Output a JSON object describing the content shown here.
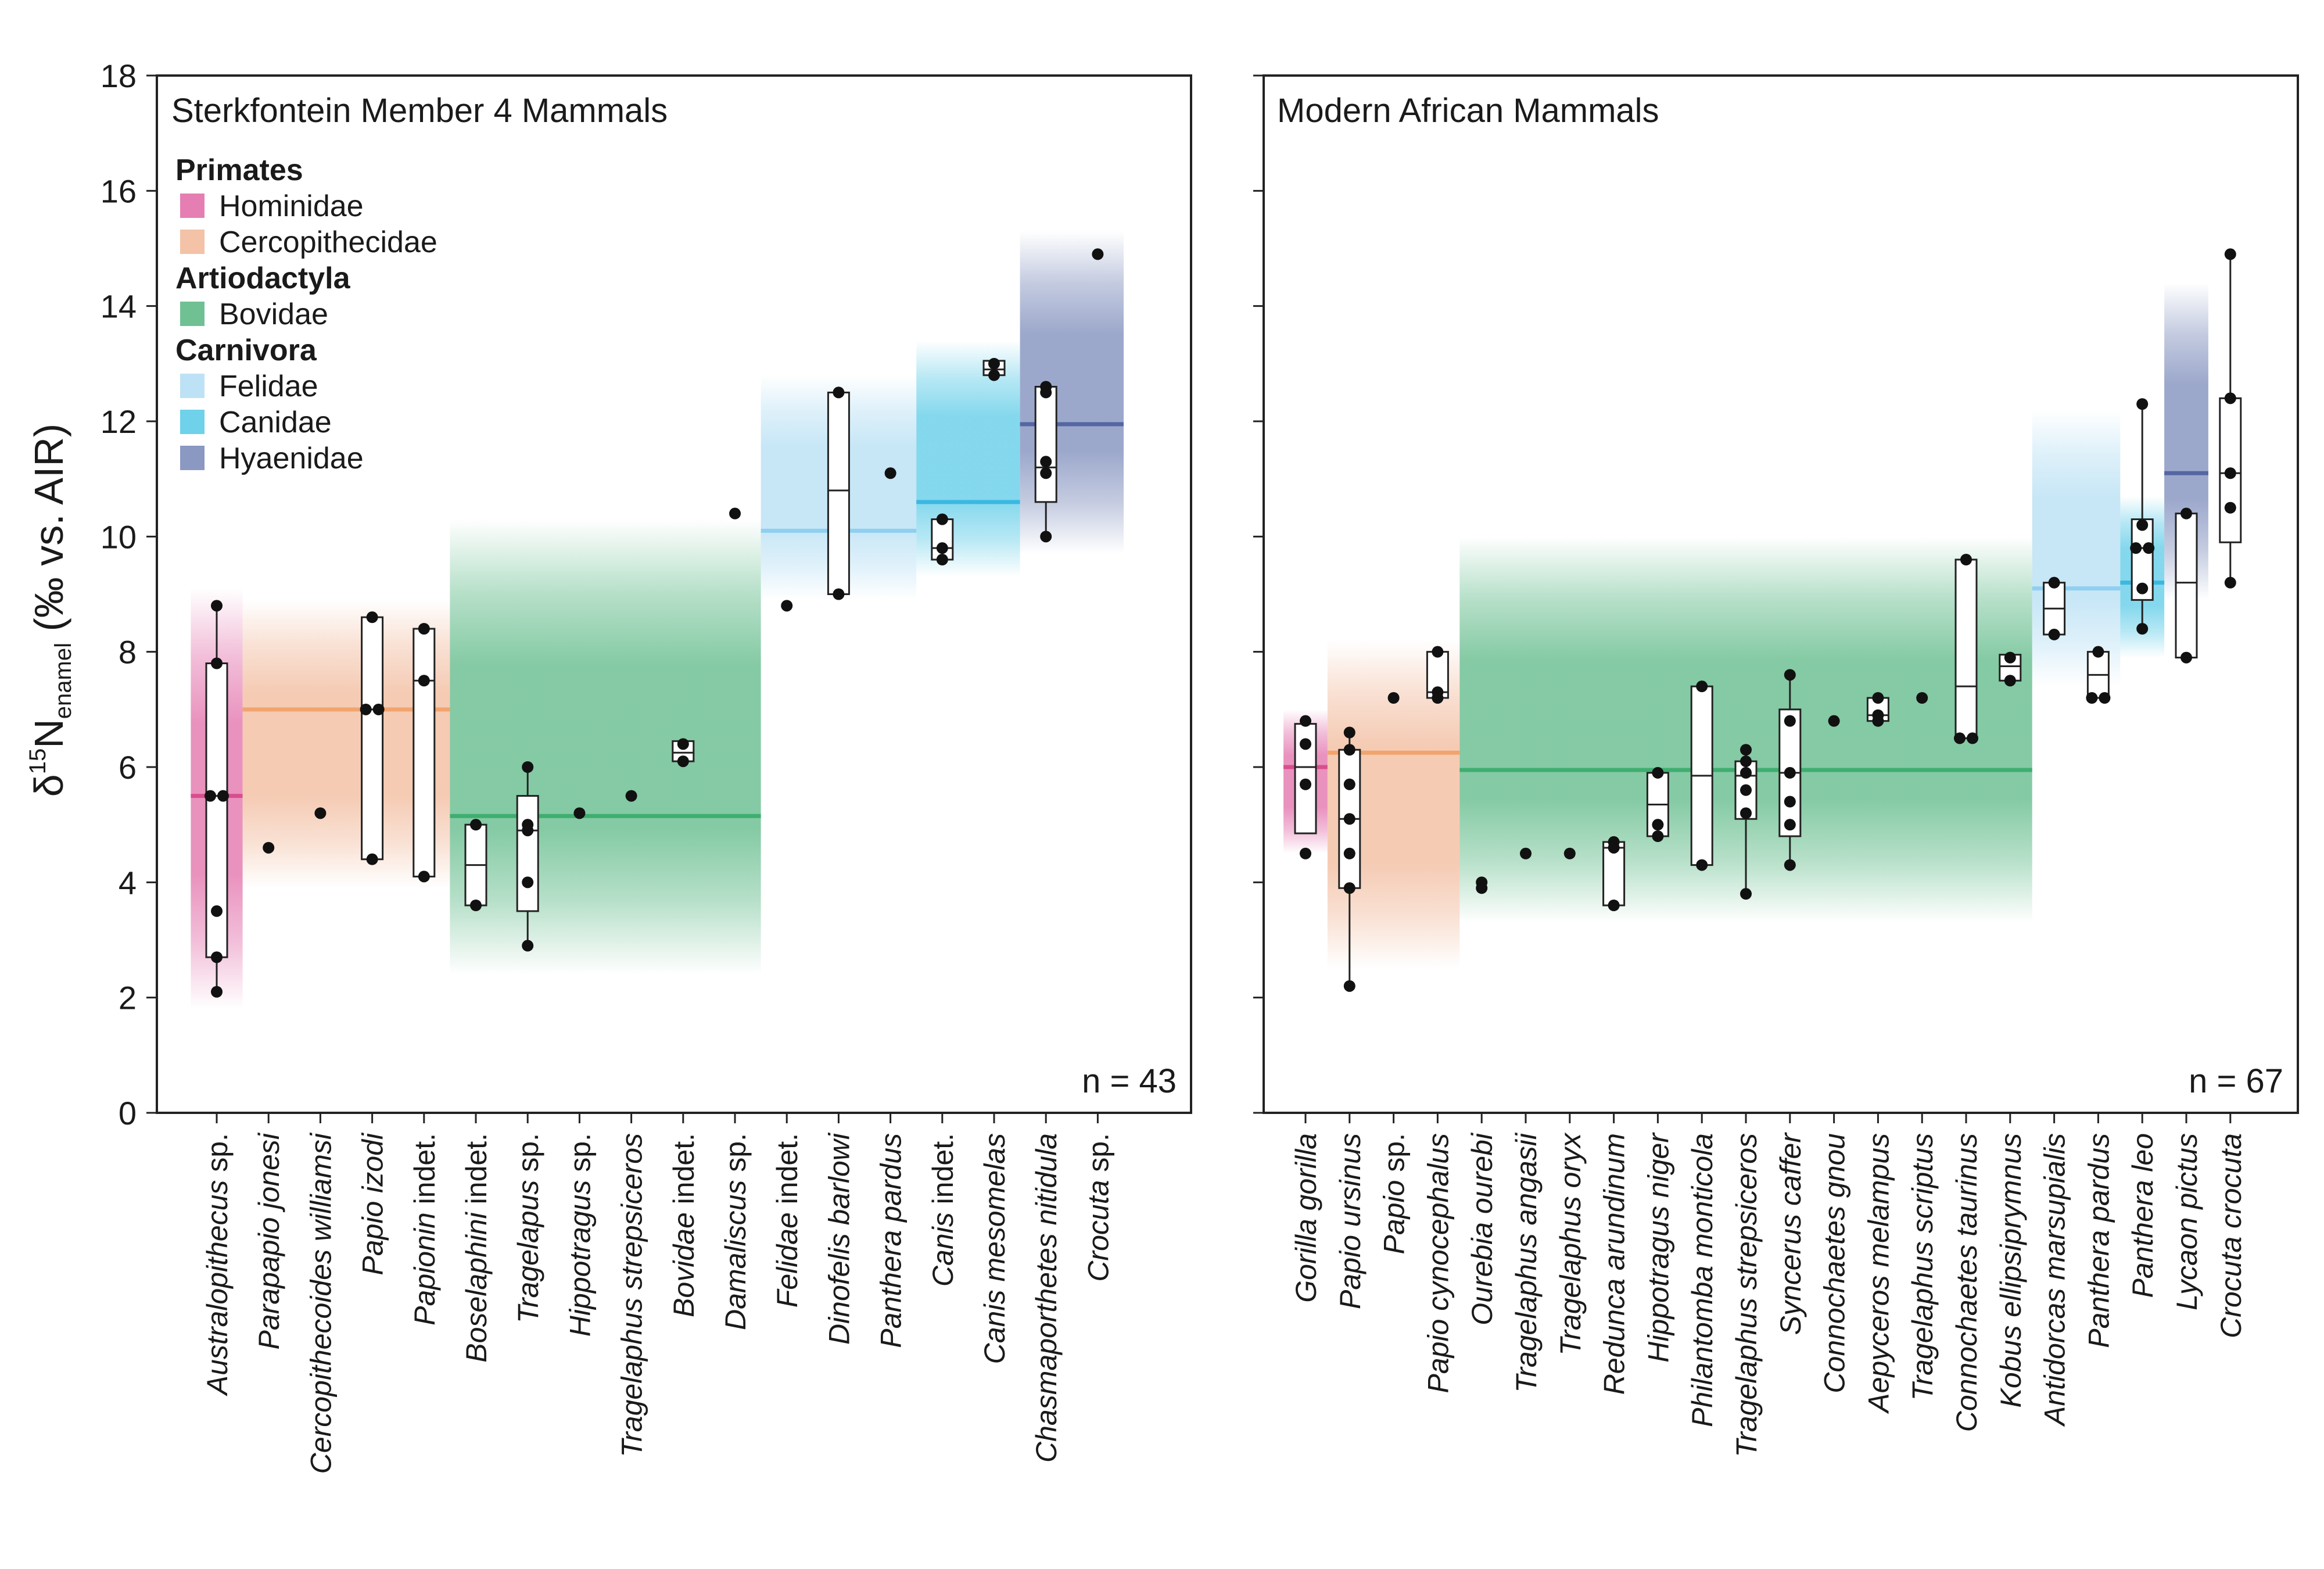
{
  "y_axis": {
    "label_main": "δ",
    "label_sup": "15",
    "label_n": "N",
    "label_sub": "enamel",
    "label_rest": " (‰ vs. AIR)",
    "ylim": [
      0,
      18
    ],
    "ticks": [
      "0",
      "2",
      "4",
      "6",
      "8",
      "10",
      "12",
      "14",
      "16",
      "18"
    ]
  },
  "legend": {
    "groups": [
      {
        "order": "Primates",
        "families": [
          {
            "name": "Hominidae",
            "color": "#e57fb3"
          },
          {
            "name": "Cercopithecidae",
            "color": "#f3c2a7"
          }
        ]
      },
      {
        "order": "Artiodactyla",
        "families": [
          {
            "name": "Bovidae",
            "color": "#6fc194"
          }
        ]
      },
      {
        "order": "Carnivora",
        "families": [
          {
            "name": "Felidae",
            "color": "#bde2f5"
          },
          {
            "name": "Canidae",
            "color": "#6fd1ea"
          },
          {
            "name": "Hyaenidae",
            "color": "#8a98c2"
          }
        ]
      }
    ]
  },
  "chart_data": [
    {
      "type": "box",
      "title": "Sterkfontein Member 4 Mammals",
      "n_label": "n = 43",
      "ylim": [
        0,
        18
      ],
      "family_bands": [
        {
          "family": "Hominidae",
          "color": "#e57fb3",
          "mean_color": "#d94d8f",
          "from": 0,
          "to": 0,
          "mean": 5.5,
          "low": 1.8,
          "high": 9.1
        },
        {
          "family": "Cercopithecidae",
          "color": "#f3c2a7",
          "mean_color": "#f2a46d",
          "from": 1,
          "to": 4,
          "mean": 7.0,
          "low": 3.9,
          "high": 8.9
        },
        {
          "family": "Bovidae",
          "color": "#6fc194",
          "mean_color": "#3fae70",
          "from": 5,
          "to": 10,
          "mean": 5.15,
          "low": 2.4,
          "high": 10.3
        },
        {
          "family": "Felidae",
          "color": "#bde2f5",
          "mean_color": "#8fd0f0",
          "from": 11,
          "to": 13,
          "mean": 10.1,
          "low": 8.9,
          "high": 12.8
        },
        {
          "family": "Canidae",
          "color": "#6fd1ea",
          "mean_color": "#3bb8e0",
          "from": 14,
          "to": 15,
          "mean": 10.6,
          "low": 9.3,
          "high": 13.4
        },
        {
          "family": "Hyaenidae",
          "color": "#8a98c2",
          "mean_color": "#5466a3",
          "from": 16,
          "to": 17,
          "mean": 11.95,
          "low": 9.7,
          "high": 15.3
        }
      ],
      "taxa": [
        {
          "name": "Australopithecus",
          "suffix": " sp.",
          "points": [
            8.8,
            7.8,
            5.5,
            5.5,
            3.5,
            2.7,
            2.1
          ],
          "box": [
            2.7,
            5.5,
            7.8
          ],
          "whisker": [
            2.1,
            8.8
          ]
        },
        {
          "name": "Parapapio jonesi",
          "suffix": "",
          "points": [
            4.6
          ]
        },
        {
          "name": "Cercopithecoides williamsi",
          "suffix": "",
          "points": [
            5.2
          ]
        },
        {
          "name": "Papio izodi",
          "suffix": "",
          "points": [
            8.6,
            7.0,
            7.0,
            4.4
          ],
          "box": [
            4.4,
            7.0,
            8.6
          ]
        },
        {
          "name": "Papionin",
          "suffix": " indet.",
          "points": [
            8.4,
            7.5,
            4.1
          ],
          "box": [
            4.1,
            7.5,
            8.4
          ]
        },
        {
          "name": "Boselaphini",
          "suffix": " indet.",
          "points": [
            5.0,
            3.6
          ],
          "box": [
            3.6,
            4.3,
            5.0
          ]
        },
        {
          "name": "Tragelapus",
          "suffix": " sp.",
          "points": [
            6.0,
            5.0,
            4.9,
            4.0,
            2.9
          ],
          "box": [
            3.5,
            4.9,
            5.5
          ],
          "whisker": [
            2.9,
            6.0
          ]
        },
        {
          "name": "Hippotragus",
          "suffix": " sp.",
          "points": [
            5.2
          ]
        },
        {
          "name": "Tragelaphus strepsiceros",
          "suffix": "",
          "points": [
            5.5
          ]
        },
        {
          "name": "Bovidae",
          "suffix": " indet.",
          "points": [
            6.4,
            6.1
          ],
          "box": [
            6.1,
            6.25,
            6.45
          ]
        },
        {
          "name": "Damaliscus",
          "suffix": " sp.",
          "points": [
            10.4
          ]
        },
        {
          "name": "Felidae",
          "suffix": " indet.",
          "points": [
            8.8
          ]
        },
        {
          "name": "Dinofelis barlowi",
          "suffix": "",
          "points": [
            12.5,
            9.0
          ],
          "box": [
            9.0,
            10.8,
            12.5
          ]
        },
        {
          "name": "Panthera pardus",
          "suffix": "",
          "points": [
            11.1
          ]
        },
        {
          "name": "Canis",
          "suffix": " indet.",
          "points": [
            10.3,
            9.8,
            9.6
          ],
          "box": [
            9.6,
            9.8,
            10.3
          ]
        },
        {
          "name": "Canis mesomelas",
          "suffix": "",
          "points": [
            13.0,
            12.8
          ],
          "box": [
            12.8,
            12.9,
            13.05
          ]
        },
        {
          "name": "Chasmaporthetes nitidula",
          "suffix": "",
          "points": [
            12.6,
            12.5,
            11.3,
            11.1,
            10.0
          ],
          "box": [
            10.6,
            11.2,
            12.6
          ],
          "whisker": [
            10.0,
            12.6
          ]
        },
        {
          "name": "Crocuta",
          "suffix": " sp.",
          "points": [
            14.9
          ]
        }
      ]
    },
    {
      "type": "box",
      "title": "Modern African Mammals",
      "n_label": "n = 67",
      "ylim": [
        0,
        18
      ],
      "family_bands": [
        {
          "family": "Hominidae",
          "color": "#e57fb3",
          "mean_color": "#d94d8f",
          "from": 0,
          "to": 0,
          "mean": 6.0,
          "low": 4.5,
          "high": 7.0
        },
        {
          "family": "Cercopithecidae",
          "color": "#f3c2a7",
          "mean_color": "#f2a46d",
          "from": 1,
          "to": 3,
          "mean": 6.25,
          "low": 2.5,
          "high": 8.2
        },
        {
          "family": "Bovidae",
          "color": "#6fc194",
          "mean_color": "#3fae70",
          "from": 4,
          "to": 16,
          "mean": 5.95,
          "low": 3.3,
          "high": 10.0
        },
        {
          "family": "Felidae",
          "color": "#bde2f5",
          "mean_color": "#8fd0f0",
          "from": 17,
          "to": 18,
          "mean": 9.1,
          "low": 7.4,
          "high": 12.2
        },
        {
          "family": "Canidae",
          "color": "#6fd1ea",
          "mean_color": "#3bb8e0",
          "from": 19,
          "to": 19,
          "mean": 9.2,
          "low": 7.9,
          "high": 10.7
        },
        {
          "family": "Hyaenidae",
          "color": "#8a98c2",
          "mean_color": "#5466a3",
          "from": 20,
          "to": 20,
          "mean": 11.1,
          "low": 8.9,
          "high": 14.4
        }
      ],
      "taxa": [
        {
          "name": "Gorilla gorilla",
          "suffix": "",
          "points": [
            6.8,
            6.4,
            5.7,
            4.5
          ],
          "box": [
            4.85,
            6.0,
            6.75
          ]
        },
        {
          "name": "Papio ursinus",
          "suffix": "",
          "points": [
            6.6,
            6.3,
            5.7,
            5.1,
            4.5,
            3.9,
            2.2
          ],
          "box": [
            3.9,
            5.1,
            6.3
          ],
          "whisker": [
            2.2,
            6.6
          ]
        },
        {
          "name": "Papio",
          "suffix": " sp.",
          "points": [
            7.2
          ]
        },
        {
          "name": "Papio cynocephalus",
          "suffix": "",
          "points": [
            8.0,
            7.3,
            7.2
          ],
          "box": [
            7.2,
            7.3,
            8.0
          ]
        },
        {
          "name": "Ourebia ourebi",
          "suffix": "",
          "points": [
            4.0,
            3.9
          ]
        },
        {
          "name": "Tragelaphus angasii",
          "suffix": "",
          "points": [
            4.5
          ]
        },
        {
          "name": "Tragelaphus oryx",
          "suffix": "",
          "points": [
            4.5
          ]
        },
        {
          "name": "Redunca arundinum",
          "suffix": "",
          "points": [
            4.7,
            4.6,
            3.6
          ],
          "box": [
            3.6,
            4.6,
            4.7
          ]
        },
        {
          "name": "Hippotragus niger",
          "suffix": "",
          "points": [
            5.9,
            5.0,
            4.8
          ],
          "box": [
            4.8,
            5.35,
            5.9
          ]
        },
        {
          "name": "Philantomba monticola",
          "suffix": "",
          "points": [
            7.4,
            4.3
          ],
          "box": [
            4.3,
            5.85,
            7.4
          ]
        },
        {
          "name": "Tragelaphus strepsiceros",
          "suffix": "",
          "points": [
            6.3,
            6.1,
            5.9,
            5.6,
            5.2,
            3.8
          ],
          "box": [
            5.1,
            5.85,
            6.1
          ],
          "whisker": [
            3.8,
            6.3
          ]
        },
        {
          "name": "Syncerus caffer",
          "suffix": "",
          "points": [
            7.6,
            6.8,
            5.9,
            5.4,
            5.0,
            4.3
          ],
          "box": [
            4.8,
            5.9,
            7.0
          ],
          "whisker": [
            4.3,
            7.6
          ]
        },
        {
          "name": "Connochaetes gnou",
          "suffix": "",
          "points": [
            6.8
          ]
        },
        {
          "name": "Aepyceros melampus",
          "suffix": "",
          "points": [
            7.2,
            6.9,
            6.8
          ],
          "box": [
            6.8,
            6.9,
            7.2
          ]
        },
        {
          "name": "Tragelaphus scriptus",
          "suffix": "",
          "points": [
            7.2
          ]
        },
        {
          "name": "Connochaetes taurinus",
          "suffix": "",
          "points": [
            9.6,
            6.5,
            6.5
          ],
          "box": [
            6.5,
            7.4,
            9.6
          ]
        },
        {
          "name": "Kobus ellipsiprymnus",
          "suffix": "",
          "points": [
            7.9,
            7.5
          ],
          "box": [
            7.5,
            7.75,
            7.95
          ]
        },
        {
          "name": "Antidorcas marsupialis",
          "suffix": "",
          "points": [
            9.2,
            8.3
          ],
          "box": [
            8.3,
            8.75,
            9.2
          ]
        },
        {
          "name": "Panthera pardus",
          "suffix": "",
          "points": [
            8.0,
            7.2,
            7.2
          ],
          "box": [
            7.2,
            7.6,
            8.0
          ]
        },
        {
          "name": "Panthera leo",
          "suffix": "",
          "points": [
            12.3,
            10.2,
            9.8,
            9.8,
            9.1,
            8.4
          ],
          "box": [
            8.9,
            9.8,
            10.3
          ],
          "whisker": [
            8.4,
            12.3
          ]
        },
        {
          "name": "Lycaon pictus",
          "suffix": "",
          "points": [
            10.4,
            7.9
          ],
          "box": [
            7.9,
            9.2,
            10.4
          ]
        },
        {
          "name": "Crocuta crocuta",
          "suffix": "",
          "points": [
            14.9,
            12.4,
            11.1,
            10.5,
            9.2
          ],
          "box": [
            9.9,
            11.1,
            12.4
          ],
          "whisker": [
            9.2,
            14.9
          ]
        }
      ]
    }
  ]
}
